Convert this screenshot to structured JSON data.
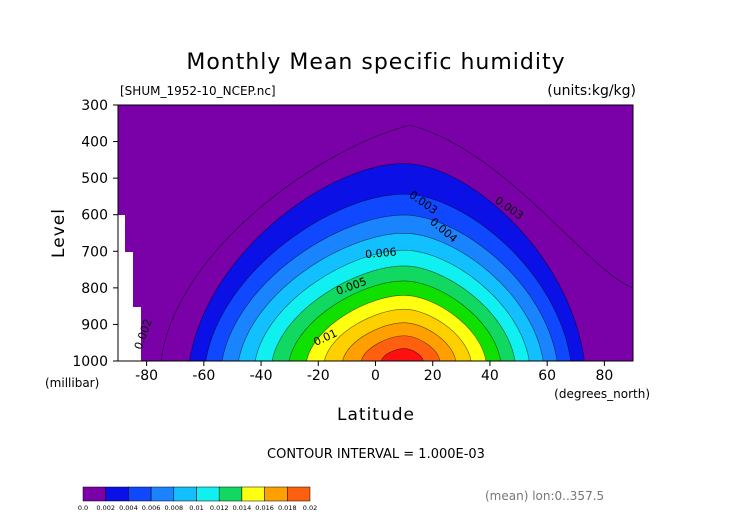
{
  "chart_data": {
    "type": "contour",
    "title": "Monthly Mean specific humidity",
    "file_label": "[SHUM_1952-10_NCEP.nc]",
    "units_label": "(units:kg/kg)",
    "ylabel": "Level",
    "y_units": "(millibar)",
    "xlabel": "Latitude",
    "x_units": "(degrees_north)",
    "xlim": [
      -90,
      90
    ],
    "ylim": [
      1000,
      300
    ],
    "x_ticks": [
      -80,
      -60,
      -40,
      -20,
      0,
      20,
      40,
      60,
      80
    ],
    "y_ticks": [
      300,
      400,
      500,
      600,
      700,
      800,
      900,
      1000
    ],
    "contour_interval_text": "CONTOUR INTERVAL = 1.000E-03",
    "mean_text": "(mean) lon:0..357.5",
    "contour_labels": [
      "0.002",
      "0.003",
      "0.004",
      "0.005",
      "0.006",
      "0.01",
      "0.003"
    ],
    "levels": [
      0.0,
      0.002,
      0.004,
      0.006,
      0.008,
      0.01,
      0.012,
      0.014,
      0.016,
      0.018,
      0.02
    ],
    "level_labels": [
      "0.0",
      "0.002",
      "0.004",
      "0.006",
      "0.008",
      "0.01",
      "0.012",
      "0.014",
      "0.016",
      "0.018",
      "0.02"
    ],
    "colors": [
      "#7a00a8",
      "#0a10e6",
      "#1048ff",
      "#1a84ff",
      "#12c0ff",
      "#10f0f0",
      "#10d860",
      "#10e000",
      "#ffff10",
      "#ffd000",
      "#ffa000",
      "#ff6010",
      "#ff1010"
    ],
    "peak": {
      "lat": 10,
      "value": 0.017,
      "level": 1000
    },
    "summit_level": 460,
    "extent_at_1000": [
      -65,
      73
    ]
  }
}
